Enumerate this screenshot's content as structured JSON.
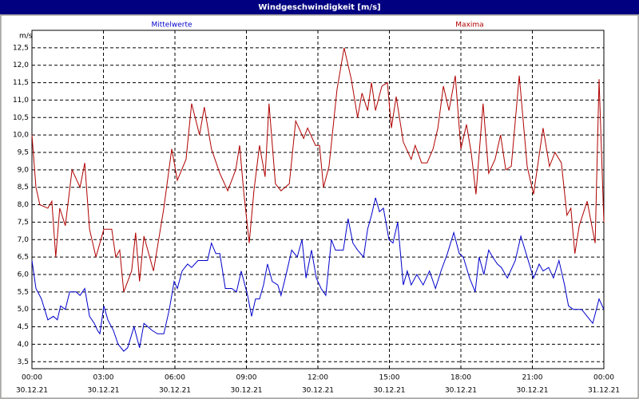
{
  "chart_data": {
    "type": "line",
    "title": "Windgeschwindigkeit [m/s]",
    "y_label": "m/s",
    "xlim": [
      0,
      1440
    ],
    "ylim": [
      3.3,
      13.0
    ],
    "grid": true,
    "xticks": [
      {
        "value": 0,
        "label": "00:00"
      },
      {
        "value": 180,
        "label": "03:00"
      },
      {
        "value": 360,
        "label": "06:00"
      },
      {
        "value": 540,
        "label": "09:00"
      },
      {
        "value": 720,
        "label": "12:00"
      },
      {
        "value": 900,
        "label": "15:00"
      },
      {
        "value": 1080,
        "label": "18:00"
      },
      {
        "value": 1260,
        "label": "21:00"
      },
      {
        "value": 1440,
        "label": "00:00"
      }
    ],
    "xtick_dates": [
      "30.12.21",
      "30.12.21",
      "30.12.21",
      "30.12.21",
      "30.12.21",
      "30.12.21",
      "30.12.21",
      "30.12.21",
      "31.12.21"
    ],
    "yticks": [
      {
        "value": 3.5,
        "label": "3,5"
      },
      {
        "value": 4.0,
        "label": "4,0"
      },
      {
        "value": 4.5,
        "label": "4,5"
      },
      {
        "value": 5.0,
        "label": "5,0"
      },
      {
        "value": 5.5,
        "label": "5,5"
      },
      {
        "value": 6.0,
        "label": "6,0"
      },
      {
        "value": 6.5,
        "label": "6,5"
      },
      {
        "value": 7.0,
        "label": "7,0"
      },
      {
        "value": 7.5,
        "label": "7,5"
      },
      {
        "value": 8.0,
        "label": "8,0"
      },
      {
        "value": 8.5,
        "label": "8,5"
      },
      {
        "value": 9.0,
        "label": "9,0"
      },
      {
        "value": 9.5,
        "label": "9,5"
      },
      {
        "value": 10.0,
        "label": "10,0"
      },
      {
        "value": 10.5,
        "label": "10,5"
      },
      {
        "value": 11.0,
        "label": "11,0"
      },
      {
        "value": 11.5,
        "label": "11,5"
      },
      {
        "value": 12.0,
        "label": "12,0"
      },
      {
        "value": 12.5,
        "label": "12,5"
      }
    ],
    "series": [
      {
        "name": "Mittelwerte",
        "color": "#0000cc",
        "x": [
          0,
          10,
          24,
          40,
          54,
          64,
          72,
          84,
          95,
          111,
          121,
          133,
          145,
          157,
          165,
          171,
          181,
          191,
          205,
          217,
          231,
          241,
          257,
          271,
          282,
          302,
          316,
          332,
          346,
          358,
          366,
          378,
          392,
          402,
          418,
          432,
          442,
          452,
          463,
          473,
          487,
          503,
          515,
          527,
          543,
          553,
          563,
          573,
          583,
          593,
          605,
          619,
          627,
          640,
          654,
          668,
          680,
          690,
          704,
          716,
          728,
          740,
          754,
          764,
          784,
          796,
          808,
          820,
          835,
          845,
          855,
          865,
          875,
          885,
          899,
          909,
          921,
          935,
          945,
          955,
          969,
          985,
          1001,
          1016,
          1030,
          1046,
          1062,
          1076,
          1086,
          1102,
          1116,
          1126,
          1138,
          1150,
          1160,
          1172,
          1182,
          1197,
          1217,
          1231,
          1247,
          1263,
          1277,
          1287,
          1301,
          1313,
          1327,
          1341,
          1351,
          1363,
          1384,
          1398,
          1412,
          1428,
          1440
        ],
        "values": [
          6.4,
          5.6,
          5.3,
          4.7,
          4.8,
          4.7,
          5.1,
          5.0,
          5.5,
          5.5,
          5.4,
          5.6,
          4.8,
          4.6,
          4.4,
          4.3,
          5.1,
          4.7,
          4.4,
          4.0,
          3.8,
          3.9,
          4.5,
          3.9,
          4.6,
          4.4,
          4.3,
          4.3,
          5.0,
          5.8,
          5.6,
          6.1,
          6.3,
          6.2,
          6.4,
          6.4,
          6.4,
          6.9,
          6.6,
          6.6,
          5.6,
          5.6,
          5.5,
          6.1,
          5.4,
          4.8,
          5.3,
          5.3,
          5.7,
          6.3,
          5.8,
          5.7,
          5.4,
          6.0,
          6.7,
          6.5,
          7.0,
          5.9,
          6.7,
          5.9,
          5.6,
          5.4,
          7.0,
          6.7,
          6.7,
          7.6,
          6.9,
          6.7,
          6.5,
          7.3,
          7.7,
          8.2,
          7.8,
          7.9,
          7.0,
          6.9,
          7.5,
          5.7,
          6.1,
          5.7,
          6.0,
          5.7,
          6.1,
          5.6,
          6.1,
          6.6,
          7.2,
          6.6,
          6.5,
          5.9,
          5.5,
          6.5,
          6.0,
          6.7,
          6.5,
          6.3,
          6.2,
          5.9,
          6.4,
          7.1,
          6.5,
          5.9,
          6.3,
          6.1,
          6.2,
          5.9,
          6.4,
          5.7,
          5.1,
          5.0,
          5.0,
          4.8,
          4.6,
          5.3,
          5.0
        ]
      },
      {
        "name": "Maxima",
        "color": "#b00000",
        "x": [
          0,
          10,
          20,
          40,
          50,
          60,
          70,
          84,
          101,
          121,
          133,
          145,
          161,
          181,
          201,
          211,
          221,
          231,
          251,
          261,
          271,
          282,
          306,
          332,
          352,
          366,
          388,
          402,
          422,
          434,
          452,
          473,
          493,
          513,
          523,
          533,
          547,
          559,
          573,
          587,
          597,
          613,
          627,
          648,
          664,
          684,
          694,
          714,
          724,
          734,
          748,
          758,
          768,
          786,
          804,
          820,
          831,
          845,
          855,
          865,
          881,
          895,
          905,
          917,
          935,
          955,
          965,
          981,
          995,
          1010,
          1022,
          1036,
          1050,
          1066,
          1080,
          1094,
          1106,
          1118,
          1136,
          1150,
          1166,
          1180,
          1193,
          1207,
          1227,
          1247,
          1263,
          1287,
          1303,
          1317,
          1333,
          1347,
          1357,
          1367,
          1378,
          1398,
          1418,
          1428,
          1440
        ],
        "values": [
          10.0,
          8.5,
          8.0,
          7.9,
          8.1,
          6.5,
          7.9,
          7.4,
          9.0,
          8.5,
          9.2,
          7.3,
          6.5,
          7.3,
          7.3,
          6.5,
          6.7,
          5.5,
          6.1,
          7.2,
          5.8,
          7.1,
          6.1,
          7.9,
          9.6,
          8.7,
          9.3,
          10.9,
          10.0,
          10.8,
          9.6,
          8.9,
          8.4,
          9.0,
          9.7,
          8.4,
          6.9,
          8.4,
          9.7,
          8.8,
          10.9,
          8.6,
          8.4,
          8.6,
          10.4,
          9.9,
          10.2,
          9.7,
          9.7,
          8.5,
          9.1,
          10.2,
          11.3,
          12.5,
          11.6,
          10.5,
          11.2,
          10.7,
          11.5,
          10.7,
          11.4,
          11.5,
          10.2,
          11.1,
          9.8,
          9.3,
          9.7,
          9.2,
          9.2,
          9.6,
          10.2,
          11.4,
          10.7,
          11.7,
          9.6,
          10.3,
          9.5,
          8.3,
          10.9,
          8.9,
          9.3,
          10.0,
          9.0,
          9.1,
          11.7,
          9.1,
          8.3,
          10.2,
          9.1,
          9.5,
          9.2,
          7.7,
          7.9,
          6.6,
          7.4,
          8.1,
          6.9,
          11.6,
          7.5
        ]
      }
    ]
  }
}
